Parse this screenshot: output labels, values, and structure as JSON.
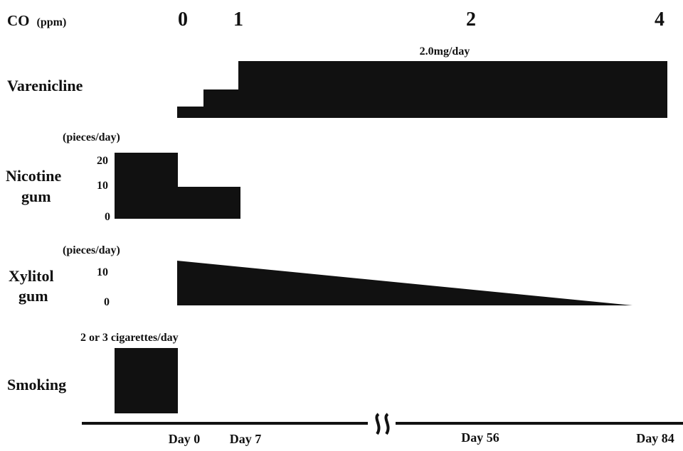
{
  "colors": {
    "ink": "#111111",
    "background": "#ffffff"
  },
  "co": {
    "label": "CO",
    "unit": "(ppm)",
    "values": [
      "0",
      "1",
      "2",
      "4"
    ]
  },
  "varenicline": {
    "label": "Varenicline",
    "dose_label": "2.0mg/day"
  },
  "nicotine_gum": {
    "label_line1": "Nicotine",
    "label_line2": "gum",
    "unit": "(pieces/day)",
    "ticks": [
      "20",
      "10",
      "0"
    ]
  },
  "xylitol_gum": {
    "label_line1": "Xylitol",
    "label_line2": "gum",
    "unit": "(pieces/day)",
    "ticks": [
      "10",
      "0"
    ]
  },
  "smoking": {
    "label": "Smoking",
    "note": "2 or 3 cigarettes/day"
  },
  "timeline": {
    "days": [
      "Day 0",
      "Day 7",
      "Day 56",
      "Day 84"
    ],
    "break_icon": "axis-break-icon"
  }
}
